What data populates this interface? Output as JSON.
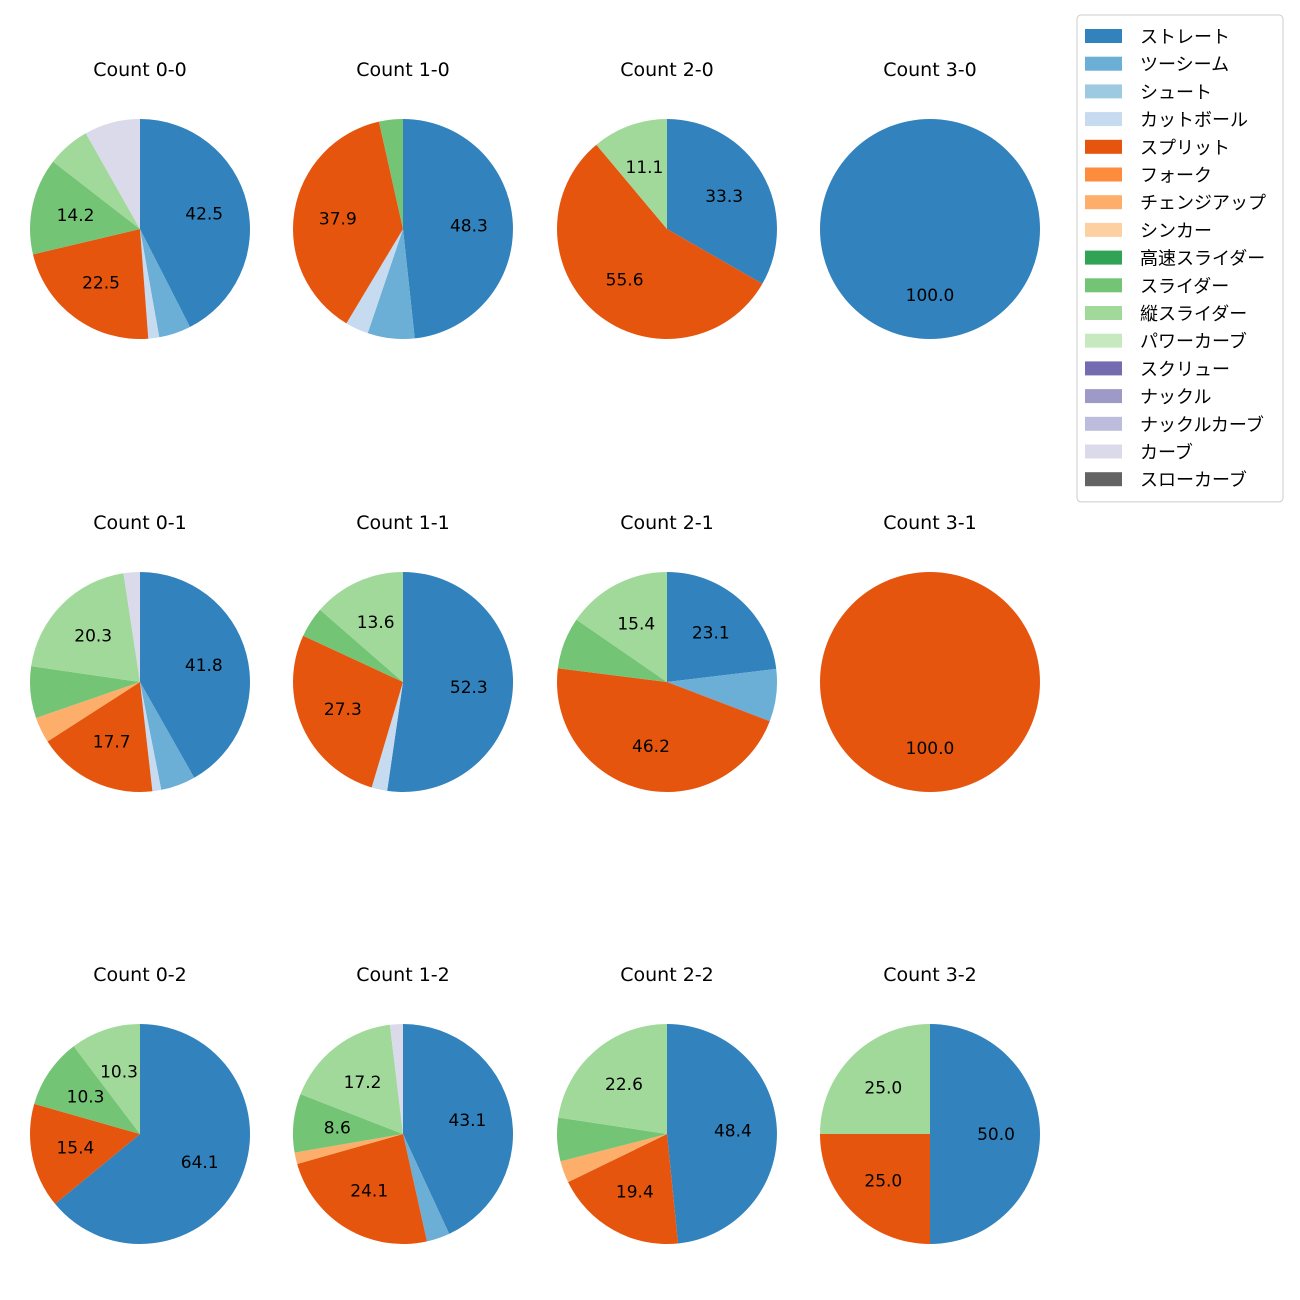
{
  "chart_data": {
    "type": "pie",
    "legend_position": "top-right",
    "legend": [
      {
        "name": "ストレート",
        "color": "#3182bd"
      },
      {
        "name": "ツーシーム",
        "color": "#6baed6"
      },
      {
        "name": "シュート",
        "color": "#9ecae1"
      },
      {
        "name": "カットボール",
        "color": "#c6dbef"
      },
      {
        "name": "スプリット",
        "color": "#e6550d"
      },
      {
        "name": "フォーク",
        "color": "#fd8d3c"
      },
      {
        "name": "チェンジアップ",
        "color": "#fdae6b"
      },
      {
        "name": "シンカー",
        "color": "#fdd0a2"
      },
      {
        "name": "高速スライダー",
        "color": "#31a354"
      },
      {
        "name": "スライダー",
        "color": "#74c476"
      },
      {
        "name": "縦スライダー",
        "color": "#a1d99b"
      },
      {
        "name": "パワーカーブ",
        "color": "#c7e9c0"
      },
      {
        "name": "スクリュー",
        "color": "#756bb1"
      },
      {
        "name": "ナックル",
        "color": "#9e9ac8"
      },
      {
        "name": "ナックルカーブ",
        "color": "#bcbddc"
      },
      {
        "name": "カーブ",
        "color": "#dadaeb"
      },
      {
        "name": "スローカーブ",
        "color": "#636363"
      }
    ],
    "pies": [
      {
        "title": "Count 0-0",
        "slices": [
          {
            "pitch": "ストレート",
            "value": 42.5,
            "label": "42.5"
          },
          {
            "pitch": "ツーシーム",
            "value": 4.7
          },
          {
            "pitch": "カットボール",
            "value": 1.6
          },
          {
            "pitch": "スプリット",
            "value": 22.5,
            "label": "22.5"
          },
          {
            "pitch": "スライダー",
            "value": 14.2,
            "label": "14.2"
          },
          {
            "pitch": "縦スライダー",
            "value": 6.3
          },
          {
            "pitch": "カーブ",
            "value": 8.2
          }
        ]
      },
      {
        "title": "Count 1-0",
        "slices": [
          {
            "pitch": "ストレート",
            "value": 48.3,
            "label": "48.3"
          },
          {
            "pitch": "ツーシーム",
            "value": 6.9
          },
          {
            "pitch": "カットボール",
            "value": 3.4
          },
          {
            "pitch": "スプリット",
            "value": 37.9,
            "label": "37.9"
          },
          {
            "pitch": "スライダー",
            "value": 3.5
          }
        ]
      },
      {
        "title": "Count 2-0",
        "slices": [
          {
            "pitch": "ストレート",
            "value": 33.3,
            "label": "33.3"
          },
          {
            "pitch": "スプリット",
            "value": 55.6,
            "label": "55.6"
          },
          {
            "pitch": "縦スライダー",
            "value": 11.1,
            "label": "11.1"
          }
        ]
      },
      {
        "title": "Count 3-0",
        "slices": [
          {
            "pitch": "ストレート",
            "value": 100.0,
            "label": "100.0"
          }
        ]
      },
      {
        "title": "Count 0-1",
        "slices": [
          {
            "pitch": "ストレート",
            "value": 41.8,
            "label": "41.8"
          },
          {
            "pitch": "ツーシーム",
            "value": 5.1
          },
          {
            "pitch": "カットボール",
            "value": 1.3
          },
          {
            "pitch": "スプリット",
            "value": 17.7,
            "label": "17.7"
          },
          {
            "pitch": "チェンジアップ",
            "value": 3.8
          },
          {
            "pitch": "スライダー",
            "value": 7.6
          },
          {
            "pitch": "縦スライダー",
            "value": 20.3,
            "label": "20.3"
          },
          {
            "pitch": "カーブ",
            "value": 2.4
          }
        ]
      },
      {
        "title": "Count 1-1",
        "slices": [
          {
            "pitch": "ストレート",
            "value": 52.3,
            "label": "52.3"
          },
          {
            "pitch": "カットボール",
            "value": 2.3
          },
          {
            "pitch": "スプリット",
            "value": 27.3,
            "label": "27.3"
          },
          {
            "pitch": "スライダー",
            "value": 4.5
          },
          {
            "pitch": "縦スライダー",
            "value": 13.6,
            "label": "13.6"
          }
        ]
      },
      {
        "title": "Count 2-1",
        "slices": [
          {
            "pitch": "ストレート",
            "value": 23.1,
            "label": "23.1"
          },
          {
            "pitch": "ツーシーム",
            "value": 7.7
          },
          {
            "pitch": "スプリット",
            "value": 46.2,
            "label": "46.2"
          },
          {
            "pitch": "スライダー",
            "value": 7.6
          },
          {
            "pitch": "縦スライダー",
            "value": 15.4,
            "label": "15.4"
          }
        ]
      },
      {
        "title": "Count 3-1",
        "slices": [
          {
            "pitch": "スプリット",
            "value": 100.0,
            "label": "100.0"
          }
        ]
      },
      {
        "title": "Count 0-2",
        "slices": [
          {
            "pitch": "ストレート",
            "value": 64.1,
            "label": "64.1"
          },
          {
            "pitch": "スプリット",
            "value": 15.4,
            "label": "15.4"
          },
          {
            "pitch": "スライダー",
            "value": 10.3,
            "label": "10.3"
          },
          {
            "pitch": "縦スライダー",
            "value": 10.3,
            "label": "10.3"
          }
        ]
      },
      {
        "title": "Count 1-2",
        "slices": [
          {
            "pitch": "ストレート",
            "value": 43.1,
            "label": "43.1"
          },
          {
            "pitch": "ツーシーム",
            "value": 3.4
          },
          {
            "pitch": "スプリット",
            "value": 24.1,
            "label": "24.1"
          },
          {
            "pitch": "チェンジアップ",
            "value": 1.7
          },
          {
            "pitch": "スライダー",
            "value": 8.6,
            "label": "8.6"
          },
          {
            "pitch": "縦スライダー",
            "value": 17.2,
            "label": "17.2"
          },
          {
            "pitch": "カーブ",
            "value": 1.9
          }
        ]
      },
      {
        "title": "Count 2-2",
        "slices": [
          {
            "pitch": "ストレート",
            "value": 48.4,
            "label": "48.4"
          },
          {
            "pitch": "スプリット",
            "value": 19.4,
            "label": "19.4"
          },
          {
            "pitch": "チェンジアップ",
            "value": 3.2
          },
          {
            "pitch": "スライダー",
            "value": 6.4
          },
          {
            "pitch": "縦スライダー",
            "value": 22.6,
            "label": "22.6"
          }
        ]
      },
      {
        "title": "Count 3-2",
        "slices": [
          {
            "pitch": "ストレート",
            "value": 50.0,
            "label": "50.0"
          },
          {
            "pitch": "スプリット",
            "value": 25.0,
            "label": "25.0"
          },
          {
            "pitch": "縦スライダー",
            "value": 25.0,
            "label": "25.0"
          }
        ]
      }
    ]
  }
}
